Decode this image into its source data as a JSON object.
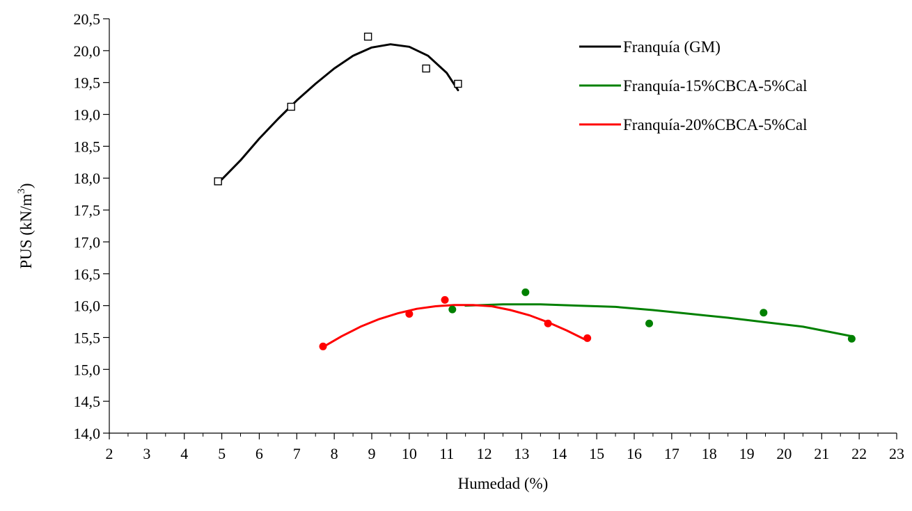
{
  "chart_data": {
    "type": "scatter",
    "title": "",
    "xlabel": "Humedad (%)",
    "ylabel_main": "PUS (kN/m",
    "ylabel_sup": "3",
    "ylabel_close": ")",
    "xlim": [
      2,
      23
    ],
    "ylim": [
      14.0,
      20.5
    ],
    "xticks": [
      2,
      3,
      4,
      5,
      6,
      7,
      8,
      9,
      10,
      11,
      12,
      13,
      14,
      15,
      16,
      17,
      18,
      19,
      20,
      21,
      22,
      23
    ],
    "xtick_labels": [
      "2",
      "3",
      "4",
      "5",
      "6",
      "7",
      "8",
      "9",
      "10",
      "11",
      "12",
      "13",
      "14",
      "15",
      "16",
      "17",
      "18",
      "19",
      "20",
      "21",
      "22",
      "23"
    ],
    "yticks": [
      14.0,
      14.5,
      15.0,
      15.5,
      16.0,
      16.5,
      17.0,
      17.5,
      18.0,
      18.5,
      19.0,
      19.5,
      20.0,
      20.5
    ],
    "ytick_labels": [
      "14,0",
      "14,5",
      "15,0",
      "15,5",
      "16,0",
      "16,5",
      "17,0",
      "17,5",
      "18,0",
      "18,5",
      "19,0",
      "19,5",
      "20,0",
      "20,5"
    ],
    "grid": false,
    "legend_position": "top-right",
    "series": [
      {
        "name": "Franquía (GM)",
        "color": "#000000",
        "marker": "square-open",
        "points": [
          [
            4.9,
            17.95
          ],
          [
            6.85,
            19.12
          ],
          [
            8.9,
            20.22
          ],
          [
            10.45,
            19.72
          ],
          [
            11.3,
            19.48
          ]
        ],
        "curve": [
          [
            4.9,
            17.92
          ],
          [
            5.5,
            18.28
          ],
          [
            6.0,
            18.62
          ],
          [
            6.5,
            18.93
          ],
          [
            7.0,
            19.22
          ],
          [
            7.5,
            19.48
          ],
          [
            8.0,
            19.72
          ],
          [
            8.5,
            19.92
          ],
          [
            9.0,
            20.05
          ],
          [
            9.5,
            20.1
          ],
          [
            10.0,
            20.06
          ],
          [
            10.5,
            19.92
          ],
          [
            11.0,
            19.65
          ],
          [
            11.3,
            19.38
          ]
        ]
      },
      {
        "name": "Franquía-15%CBCA-5%Cal",
        "color": "#008000",
        "marker": "circle-filled",
        "points": [
          [
            11.15,
            15.94
          ],
          [
            13.1,
            16.21
          ],
          [
            16.4,
            15.72
          ],
          [
            19.45,
            15.89
          ],
          [
            21.8,
            15.48
          ]
        ],
        "curve": [
          [
            11.5,
            16.0
          ],
          [
            12.5,
            16.02
          ],
          [
            13.5,
            16.02
          ],
          [
            14.5,
            16.0
          ],
          [
            15.5,
            15.98
          ],
          [
            16.5,
            15.93
          ],
          [
            17.5,
            15.87
          ],
          [
            18.5,
            15.81
          ],
          [
            19.5,
            15.74
          ],
          [
            20.5,
            15.67
          ],
          [
            21.8,
            15.52
          ]
        ]
      },
      {
        "name": "Franquía-20%CBCA-5%Cal",
        "color": "#ff0000",
        "marker": "circle-filled",
        "points": [
          [
            7.7,
            15.36
          ],
          [
            10.0,
            15.87
          ],
          [
            10.95,
            16.09
          ],
          [
            13.7,
            15.72
          ],
          [
            14.75,
            15.49
          ]
        ],
        "curve": [
          [
            7.7,
            15.35
          ],
          [
            8.2,
            15.52
          ],
          [
            8.7,
            15.67
          ],
          [
            9.2,
            15.79
          ],
          [
            9.7,
            15.88
          ],
          [
            10.2,
            15.95
          ],
          [
            10.7,
            15.99
          ],
          [
            11.2,
            16.01
          ],
          [
            11.7,
            16.01
          ],
          [
            12.2,
            15.99
          ],
          [
            12.7,
            15.93
          ],
          [
            13.2,
            15.85
          ],
          [
            13.7,
            15.74
          ],
          [
            14.2,
            15.61
          ],
          [
            14.75,
            15.45
          ]
        ]
      }
    ]
  }
}
